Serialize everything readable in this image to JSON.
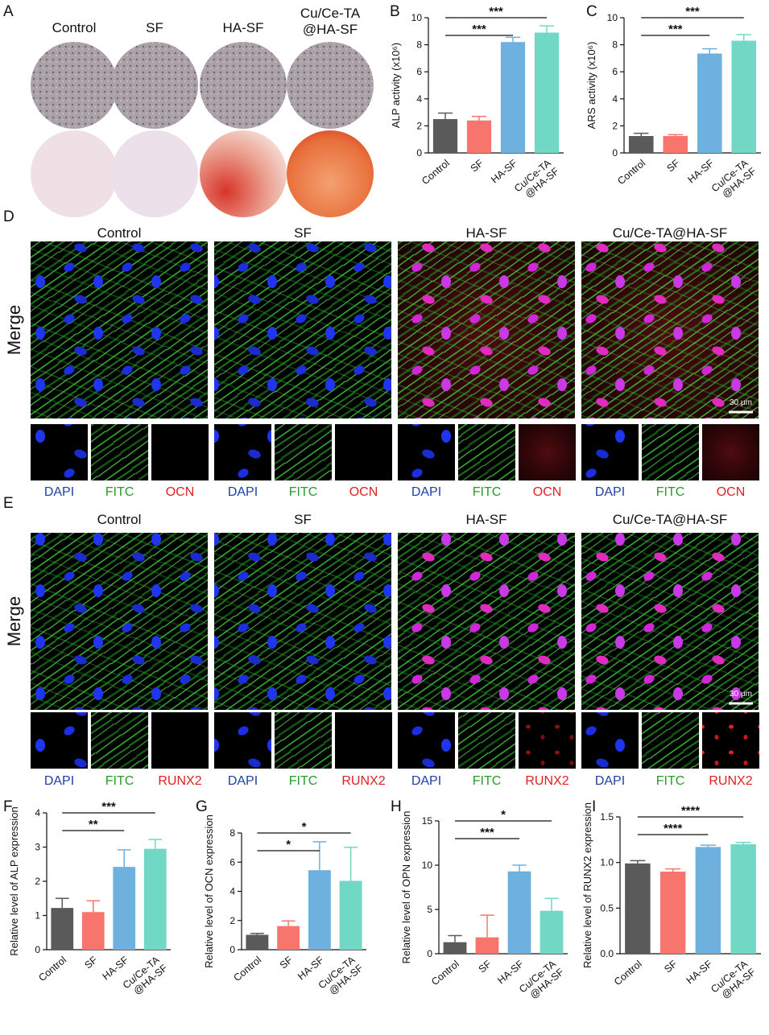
{
  "plate_panel": {
    "letter": "A",
    "labels": [
      "Control",
      "SF",
      "HA-SF",
      [
        "Cu/Ce-TA",
        "@HA-SF"
      ]
    ]
  },
  "if_panels": [
    {
      "letter": "D",
      "groups": [
        "Control",
        "SF",
        "HA-SF",
        "Cu/Ce-TA@HA-SF"
      ],
      "row_label": "Merge",
      "channels": [
        "DAPI",
        "FITC",
        "OCN"
      ],
      "scale": "30 μm"
    },
    {
      "letter": "E",
      "groups": [
        "Control",
        "SF",
        "HA-SF",
        "Cu/Ce-TA@HA-SF"
      ],
      "row_label": "Merge",
      "channels": [
        "DAPI",
        "FITC",
        "RUNX2"
      ],
      "scale": "30 μm"
    }
  ],
  "chart_data": [
    {
      "type": "bar",
      "letter": "B",
      "y_label": "ALP activity (x10⁶)",
      "categories": [
        "Control",
        "SF",
        "HA-SF",
        [
          "Cu/Ce-TA",
          "@HA-SF"
        ]
      ],
      "values": [
        2.5,
        2.4,
        8.2,
        8.9
      ],
      "errors": [
        0.45,
        0.3,
        0.35,
        0.5
      ],
      "colors": [
        "#5a5a5a",
        "#f8756d",
        "#6eb0de",
        "#71d8c6"
      ],
      "ylim": [
        0,
        10
      ],
      "yticks": [
        0,
        2,
        4,
        6,
        8,
        10
      ],
      "brackets": [
        {
          "between": [
            0,
            2
          ],
          "label": "***"
        },
        {
          "between": [
            0,
            3
          ],
          "label": "***"
        }
      ]
    },
    {
      "type": "bar",
      "letter": "C",
      "y_label": "ARS activity (x10⁶)",
      "categories": [
        "Control",
        "SF",
        "HA-SF",
        [
          "Cu/Ce-TA",
          "@HA-SF"
        ]
      ],
      "values": [
        1.25,
        1.25,
        7.35,
        8.3
      ],
      "errors": [
        0.2,
        0.1,
        0.35,
        0.45
      ],
      "colors": [
        "#5a5a5a",
        "#f8756d",
        "#6eb0de",
        "#71d8c6"
      ],
      "ylim": [
        0,
        10
      ],
      "yticks": [
        0,
        2,
        4,
        6,
        8,
        10
      ],
      "brackets": [
        {
          "between": [
            0,
            2
          ],
          "label": "***"
        },
        {
          "between": [
            0,
            3
          ],
          "label": "***"
        }
      ]
    },
    {
      "type": "bar",
      "letter": "F",
      "y_label": "Relative level of ALP expression",
      "categories": [
        "Control",
        "SF",
        "HA-SF",
        [
          "Cu/Ce-TA",
          "@HA-SF"
        ]
      ],
      "values": [
        1.22,
        1.1,
        2.42,
        2.95
      ],
      "errors": [
        0.28,
        0.33,
        0.5,
        0.27
      ],
      "colors": [
        "#5a5a5a",
        "#f8756d",
        "#6eb0de",
        "#71d8c6"
      ],
      "ylim": [
        0,
        4
      ],
      "yticks": [
        0,
        1,
        2,
        3,
        4
      ],
      "brackets": [
        {
          "between": [
            0,
            2
          ],
          "label": "**"
        },
        {
          "between": [
            0,
            3
          ],
          "label": "***"
        }
      ]
    },
    {
      "type": "bar",
      "letter": "G",
      "y_label": "Relative level of OCN expression",
      "categories": [
        "Control",
        "SF",
        "HA-SF",
        [
          "Cu/Ce-TA",
          "@HA-SF"
        ]
      ],
      "values": [
        1.02,
        1.62,
        5.45,
        4.72
      ],
      "errors": [
        0.1,
        0.35,
        1.95,
        2.3
      ],
      "colors": [
        "#5a5a5a",
        "#f8756d",
        "#6eb0de",
        "#71d8c6"
      ],
      "ylim": [
        0,
        8
      ],
      "yticks": [
        0,
        2,
        4,
        6,
        8
      ],
      "brackets": [
        {
          "between": [
            0,
            2
          ],
          "label": "*"
        },
        {
          "between": [
            0,
            3
          ],
          "label": "*"
        }
      ]
    },
    {
      "type": "bar",
      "letter": "H",
      "y_label": "Relative level of OPN expression",
      "categories": [
        "Control",
        "SF",
        "HA-SF",
        [
          "Cu/Ce-TA",
          "@HA-SF"
        ]
      ],
      "values": [
        1.3,
        1.85,
        9.3,
        4.85
      ],
      "errors": [
        0.75,
        2.5,
        0.7,
        1.4
      ],
      "colors": [
        "#5a5a5a",
        "#f8756d",
        "#6eb0de",
        "#71d8c6"
      ],
      "ylim": [
        0,
        15
      ],
      "yticks": [
        0,
        5,
        10,
        15
      ],
      "brackets": [
        {
          "between": [
            0,
            2
          ],
          "label": "***"
        },
        {
          "between": [
            0,
            3
          ],
          "label": "*"
        }
      ]
    },
    {
      "type": "bar",
      "letter": "I",
      "y_label": "Relative level of RUNX2 expression",
      "categories": [
        "Control",
        "SF",
        "HA-SF",
        [
          "Cu/Ce-TA",
          "@HA-SF"
        ]
      ],
      "values": [
        0.99,
        0.9,
        1.17,
        1.2
      ],
      "errors": [
        0.03,
        0.03,
        0.02,
        0.02
      ],
      "colors": [
        "#5a5a5a",
        "#f8756d",
        "#6eb0de",
        "#71d8c6"
      ],
      "ylim": [
        0,
        1.5
      ],
      "yticks": [
        {
          "value": 0,
          "label": "0.0"
        },
        {
          "value": 0.5,
          "label": "0.5"
        },
        {
          "value": 1,
          "label": "1.0"
        },
        {
          "value": 1.5,
          "label": "1.5"
        }
      ],
      "brackets": [
        {
          "between": [
            0,
            2
          ],
          "label": "****"
        },
        {
          "between": [
            0,
            3
          ],
          "label": "****"
        }
      ]
    }
  ]
}
